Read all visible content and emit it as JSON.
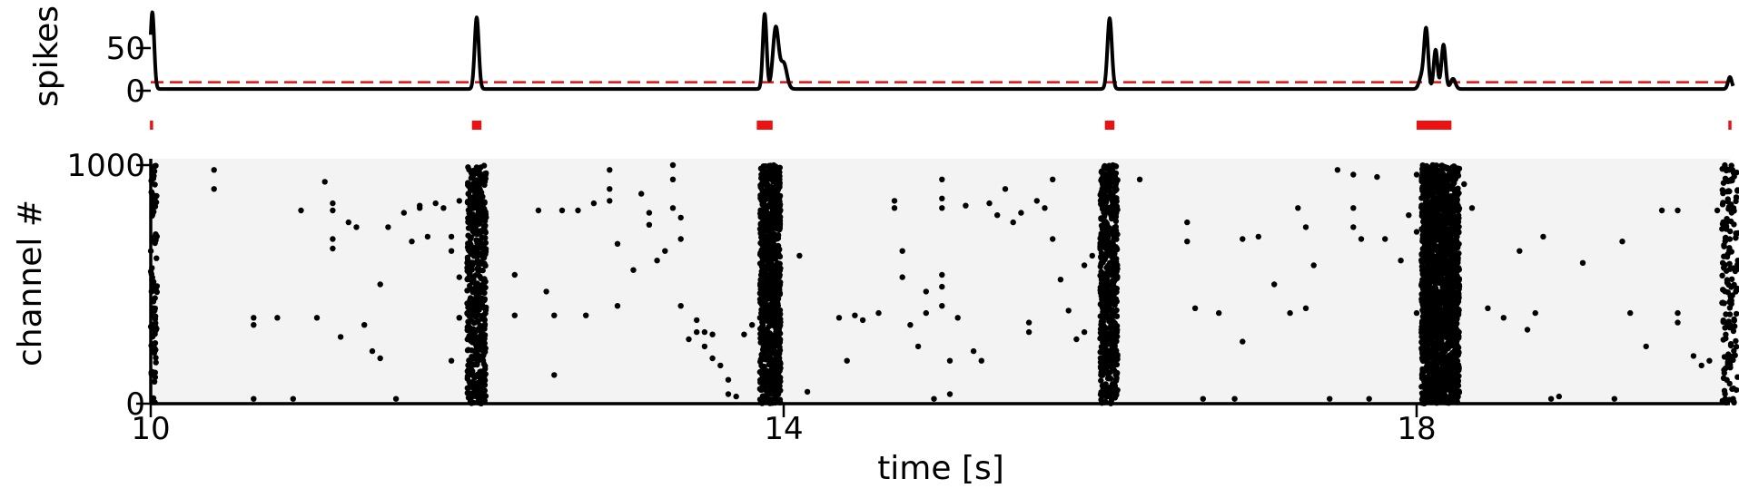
{
  "colors": {
    "trace": "#000000",
    "threshold": "#e01010",
    "burst_marker": "#ee1111",
    "raster_background": "#f3f3f3",
    "dot": "#000000"
  },
  "chart_data": [
    {
      "type": "line",
      "panel": "population spike count",
      "ylabel": "spikes",
      "y_ticks": [
        0,
        50
      ],
      "y_tick_labels": [
        "0",
        "50"
      ],
      "xlim": [
        10,
        20
      ],
      "ylim": [
        -3,
        95
      ],
      "threshold": 10,
      "threshold_style": "dashed",
      "baseline": 2,
      "peaks": [
        {
          "t": 10.01,
          "h": 90,
          "w": 0.012
        },
        {
          "t": 12.06,
          "h": 84,
          "w": 0.013
        },
        {
          "t": 13.88,
          "h": 88,
          "w": 0.012
        },
        {
          "t": 13.95,
          "h": 72,
          "w": 0.018
        },
        {
          "t": 14.0,
          "h": 30,
          "w": 0.02
        },
        {
          "t": 16.06,
          "h": 83,
          "w": 0.014
        },
        {
          "t": 18.06,
          "h": 70,
          "w": 0.013
        },
        {
          "t": 18.12,
          "h": 46,
          "w": 0.012
        },
        {
          "t": 18.17,
          "h": 52,
          "w": 0.013
        },
        {
          "t": 18.03,
          "h": 14,
          "w": 0.015
        },
        {
          "t": 18.23,
          "h": 12,
          "w": 0.015
        },
        {
          "t": 19.98,
          "h": 14,
          "w": 0.012
        }
      ],
      "burst_markers": [
        [
          9.995,
          10.015
        ],
        [
          12.03,
          12.09
        ],
        [
          13.83,
          13.93
        ],
        [
          16.03,
          16.09
        ],
        [
          18.0,
          18.22
        ],
        [
          19.97,
          19.99
        ]
      ]
    },
    {
      "type": "scatter",
      "panel": "raster",
      "ylabel": "channel #",
      "xlabel": "time [s]",
      "xlim": [
        10,
        20
      ],
      "ylim": [
        0,
        1000
      ],
      "x_ticks": [
        10,
        14,
        18
      ],
      "x_tick_labels": [
        "10",
        "14",
        "18"
      ],
      "y_ticks": [
        0,
        1000
      ],
      "y_tick_labels": [
        "0",
        "1000"
      ],
      "dense_bands": [
        {
          "x0": 10.0,
          "x1": 10.04,
          "density": 90
        },
        {
          "x0": 12.0,
          "x1": 12.12,
          "density": 520
        },
        {
          "x0": 13.85,
          "x1": 13.98,
          "density": 900
        },
        {
          "x0": 16.0,
          "x1": 16.11,
          "density": 600
        },
        {
          "x0": 18.03,
          "x1": 18.27,
          "density": 1800
        },
        {
          "x0": 19.93,
          "x1": 20.03,
          "density": 160
        }
      ],
      "points": [
        [
          10.4,
          980
        ],
        [
          10.4,
          900
        ],
        [
          10.65,
          20
        ],
        [
          10.65,
          360
        ],
        [
          10.65,
          330
        ],
        [
          10.8,
          360
        ],
        [
          10.9,
          20
        ],
        [
          10.95,
          810
        ],
        [
          11.05,
          360
        ],
        [
          11.1,
          930
        ],
        [
          11.15,
          840
        ],
        [
          11.15,
          810
        ],
        [
          11.15,
          690
        ],
        [
          11.15,
          650
        ],
        [
          11.2,
          280
        ],
        [
          11.25,
          760
        ],
        [
          11.3,
          740
        ],
        [
          11.35,
          330
        ],
        [
          11.4,
          220
        ],
        [
          11.45,
          500
        ],
        [
          11.5,
          740
        ],
        [
          11.45,
          190
        ],
        [
          11.55,
          20
        ],
        [
          11.6,
          800
        ],
        [
          11.7,
          830
        ],
        [
          11.7,
          820
        ],
        [
          11.75,
          700
        ],
        [
          11.8,
          840
        ],
        [
          11.85,
          820
        ],
        [
          11.9,
          640
        ],
        [
          11.65,
          680
        ],
        [
          11.9,
          700
        ],
        [
          11.95,
          360
        ],
        [
          12.0,
          380
        ],
        [
          12.0,
          420
        ],
        [
          11.95,
          530
        ],
        [
          12.0,
          570
        ],
        [
          12.0,
          590
        ],
        [
          11.95,
          850
        ],
        [
          11.95,
          360
        ],
        [
          11.9,
          180
        ],
        [
          12.3,
          370
        ],
        [
          12.3,
          540
        ],
        [
          12.45,
          810
        ],
        [
          12.5,
          470
        ],
        [
          12.55,
          120
        ],
        [
          12.55,
          370
        ],
        [
          12.6,
          810
        ],
        [
          12.7,
          810
        ],
        [
          12.75,
          370
        ],
        [
          12.8,
          840
        ],
        [
          12.9,
          980
        ],
        [
          12.9,
          900
        ],
        [
          12.9,
          850
        ],
        [
          12.95,
          670
        ],
        [
          12.95,
          410
        ],
        [
          13.05,
          560
        ],
        [
          13.1,
          880
        ],
        [
          13.15,
          800
        ],
        [
          13.15,
          750
        ],
        [
          13.2,
          600
        ],
        [
          13.25,
          640
        ],
        [
          13.3,
          1000
        ],
        [
          13.3,
          940
        ],
        [
          13.3,
          820
        ],
        [
          13.35,
          780
        ],
        [
          13.35,
          690
        ],
        [
          13.35,
          410
        ],
        [
          13.4,
          270
        ],
        [
          13.45,
          300
        ],
        [
          13.45,
          350
        ],
        [
          13.5,
          300
        ],
        [
          13.5,
          240
        ],
        [
          13.55,
          290
        ],
        [
          13.55,
          190
        ],
        [
          13.6,
          160
        ],
        [
          13.65,
          100
        ],
        [
          13.65,
          40
        ],
        [
          13.7,
          30
        ],
        [
          13.75,
          290
        ],
        [
          13.8,
          330
        ],
        [
          13.85,
          360
        ],
        [
          14.1,
          620
        ],
        [
          14.15,
          50
        ],
        [
          14.35,
          360
        ],
        [
          14.4,
          180
        ],
        [
          14.45,
          370
        ],
        [
          14.5,
          350
        ],
        [
          14.6,
          380
        ],
        [
          14.7,
          850
        ],
        [
          14.7,
          820
        ],
        [
          14.75,
          640
        ],
        [
          14.75,
          530
        ],
        [
          14.8,
          330
        ],
        [
          14.85,
          240
        ],
        [
          14.9,
          470
        ],
        [
          14.9,
          380
        ],
        [
          14.95,
          20
        ],
        [
          15.0,
          940
        ],
        [
          15.0,
          860
        ],
        [
          15.0,
          820
        ],
        [
          15.0,
          540
        ],
        [
          15.0,
          490
        ],
        [
          15.0,
          410
        ],
        [
          15.05,
          180
        ],
        [
          15.05,
          40
        ],
        [
          15.1,
          360
        ],
        [
          15.15,
          830
        ],
        [
          15.2,
          220
        ],
        [
          15.25,
          180
        ],
        [
          15.3,
          840
        ],
        [
          15.35,
          790
        ],
        [
          15.4,
          900
        ],
        [
          15.45,
          760
        ],
        [
          15.5,
          800
        ],
        [
          15.55,
          340
        ],
        [
          15.55,
          300
        ],
        [
          15.6,
          850
        ],
        [
          15.65,
          820
        ],
        [
          15.7,
          940
        ],
        [
          15.7,
          690
        ],
        [
          15.75,
          520
        ],
        [
          15.8,
          390
        ],
        [
          15.85,
          270
        ],
        [
          15.9,
          580
        ],
        [
          15.9,
          300
        ],
        [
          15.95,
          620
        ],
        [
          16.25,
          940
        ],
        [
          16.55,
          760
        ],
        [
          16.55,
          680
        ],
        [
          16.6,
          400
        ],
        [
          16.65,
          20
        ],
        [
          16.75,
          380
        ],
        [
          16.85,
          20
        ],
        [
          16.9,
          260
        ],
        [
          16.9,
          690
        ],
        [
          17.0,
          700
        ],
        [
          17.1,
          500
        ],
        [
          17.2,
          380
        ],
        [
          17.25,
          820
        ],
        [
          17.3,
          740
        ],
        [
          17.3,
          400
        ],
        [
          17.35,
          580
        ],
        [
          17.45,
          20
        ],
        [
          17.5,
          980
        ],
        [
          17.6,
          960
        ],
        [
          17.6,
          820
        ],
        [
          17.6,
          740
        ],
        [
          17.65,
          690
        ],
        [
          17.7,
          20
        ],
        [
          17.75,
          950
        ],
        [
          17.8,
          690
        ],
        [
          17.9,
          600
        ],
        [
          17.95,
          790
        ],
        [
          18.0,
          960
        ],
        [
          18.0,
          720
        ],
        [
          18.0,
          380
        ],
        [
          18.05,
          790
        ],
        [
          18.3,
          920
        ],
        [
          18.35,
          820
        ],
        [
          18.45,
          400
        ],
        [
          18.55,
          360
        ],
        [
          18.65,
          640
        ],
        [
          18.7,
          310
        ],
        [
          18.75,
          380
        ],
        [
          18.8,
          700
        ],
        [
          18.85,
          20
        ],
        [
          18.9,
          30
        ],
        [
          19.05,
          590
        ],
        [
          19.25,
          20
        ],
        [
          19.3,
          680
        ],
        [
          19.35,
          380
        ],
        [
          19.45,
          240
        ],
        [
          19.55,
          810
        ],
        [
          19.65,
          810
        ],
        [
          19.65,
          380
        ],
        [
          19.65,
          340
        ],
        [
          19.75,
          200
        ],
        [
          19.8,
          160
        ],
        [
          19.85,
          180
        ],
        [
          19.9,
          810
        ],
        [
          19.95,
          20
        ],
        [
          20.0,
          20
        ]
      ]
    }
  ],
  "axes": {
    "top_ylabel": "spikes",
    "bottom_ylabel": "channel #",
    "xlabel": "time [s]"
  }
}
